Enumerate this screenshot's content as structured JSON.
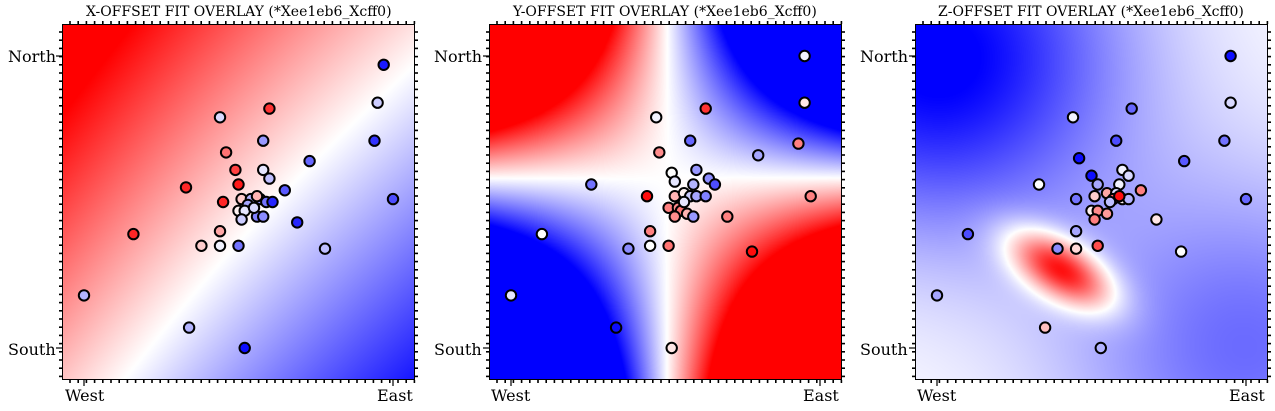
{
  "chart_data": [
    {
      "type": "scatter",
      "title": "X-OFFSET FIT OVERLAY (*Xee1eb6_Xcff0)",
      "xtick_labels": [
        "West",
        "East"
      ],
      "ytick_labels": [
        "North",
        "South"
      ],
      "xlim": [
        0,
        100
      ],
      "ylim": [
        0,
        100
      ],
      "x_ticks": [
        0,
        100
      ],
      "y_ticks": [
        0,
        100
      ],
      "background": "x-offset gradient (red north-west to blue south-east)",
      "points": [
        {
          "x": 97,
          "y": 97,
          "v": -0.9
        },
        {
          "x": 95,
          "y": 84,
          "v": -0.2
        },
        {
          "x": 94,
          "y": 71,
          "v": -0.8
        },
        {
          "x": 60,
          "y": 82,
          "v": 0.8
        },
        {
          "x": 44,
          "y": 79,
          "v": -0.15
        },
        {
          "x": 58,
          "y": 71,
          "v": -0.4
        },
        {
          "x": 46,
          "y": 67,
          "v": 0.55
        },
        {
          "x": 49,
          "y": 61,
          "v": 0.75
        },
        {
          "x": 58,
          "y": 61,
          "v": -0.1
        },
        {
          "x": 60,
          "y": 58,
          "v": -0.25
        },
        {
          "x": 33,
          "y": 55,
          "v": 0.85
        },
        {
          "x": 73,
          "y": 64,
          "v": -0.6
        },
        {
          "x": 50,
          "y": 56,
          "v": 0.9
        },
        {
          "x": 65,
          "y": 54,
          "v": -0.65
        },
        {
          "x": 100,
          "y": 51,
          "v": -0.7
        },
        {
          "x": 45,
          "y": 50,
          "v": 0.85
        },
        {
          "x": 51,
          "y": 51,
          "v": 0.2
        },
        {
          "x": 54,
          "y": 51,
          "v": -0.3
        },
        {
          "x": 57,
          "y": 51,
          "v": -0.4
        },
        {
          "x": 59,
          "y": 50,
          "v": -0.55
        },
        {
          "x": 61,
          "y": 50,
          "v": -0.85
        },
        {
          "x": 53,
          "y": 49,
          "v": -0.35
        },
        {
          "x": 50,
          "y": 47,
          "v": 0.05
        },
        {
          "x": 52,
          "y": 47,
          "v": -0.1
        },
        {
          "x": 56,
          "y": 45,
          "v": -0.5
        },
        {
          "x": 58,
          "y": 45,
          "v": -0.45
        },
        {
          "x": 51,
          "y": 44,
          "v": -0.2
        },
        {
          "x": 69,
          "y": 43,
          "v": -0.85
        },
        {
          "x": 55,
          "y": 48,
          "v": -0.15
        },
        {
          "x": 16,
          "y": 39,
          "v": 0.85
        },
        {
          "x": 44,
          "y": 40,
          "v": 0.35
        },
        {
          "x": 38,
          "y": 35,
          "v": 0.2
        },
        {
          "x": 44,
          "y": 35,
          "v": -0.05
        },
        {
          "x": 50,
          "y": 35,
          "v": -0.55
        },
        {
          "x": 78,
          "y": 34,
          "v": -0.25
        },
        {
          "x": 0,
          "y": 18,
          "v": -0.3
        },
        {
          "x": 34,
          "y": 7,
          "v": -0.3
        },
        {
          "x": 52,
          "y": 0,
          "v": -0.95
        },
        {
          "x": 56,
          "y": 52,
          "v": 0.3
        }
      ]
    },
    {
      "type": "scatter",
      "title": "Y-OFFSET FIT OVERLAY (*Xee1eb6_Xcff0)",
      "xtick_labels": [
        "West",
        "East"
      ],
      "ytick_labels": [
        "North",
        "South"
      ],
      "xlim": [
        0,
        100
      ],
      "ylim": [
        0,
        100
      ],
      "x_ticks": [
        0,
        100
      ],
      "y_ticks": [
        0,
        100
      ],
      "background": "y-offset gradient (red north-west and south-east, blue north-east and south-west)",
      "points": [
        {
          "x": 95,
          "y": 100,
          "v": -0.05
        },
        {
          "x": 95,
          "y": 84,
          "v": 0.1
        },
        {
          "x": 47,
          "y": 79,
          "v": -0.05
        },
        {
          "x": 63,
          "y": 82,
          "v": 0.8
        },
        {
          "x": 58,
          "y": 71,
          "v": -0.6
        },
        {
          "x": 48,
          "y": 67,
          "v": 0.45
        },
        {
          "x": 80,
          "y": 66,
          "v": -0.35
        },
        {
          "x": 93,
          "y": 70,
          "v": 0.5
        },
        {
          "x": 52,
          "y": 60,
          "v": 0.0
        },
        {
          "x": 60,
          "y": 61,
          "v": -0.4
        },
        {
          "x": 64,
          "y": 58,
          "v": -0.45
        },
        {
          "x": 53,
          "y": 57,
          "v": -0.1
        },
        {
          "x": 59,
          "y": 56,
          "v": -0.3
        },
        {
          "x": 66,
          "y": 56,
          "v": -0.7
        },
        {
          "x": 26,
          "y": 56,
          "v": -0.55
        },
        {
          "x": 97,
          "y": 52,
          "v": 0.5
        },
        {
          "x": 44,
          "y": 52,
          "v": 0.95
        },
        {
          "x": 53,
          "y": 52,
          "v": 0.3
        },
        {
          "x": 56,
          "y": 53,
          "v": 0.05
        },
        {
          "x": 58,
          "y": 52,
          "v": -0.2
        },
        {
          "x": 60,
          "y": 52,
          "v": -0.35
        },
        {
          "x": 63,
          "y": 52,
          "v": -0.5
        },
        {
          "x": 51,
          "y": 48,
          "v": 0.5
        },
        {
          "x": 54,
          "y": 48,
          "v": 0.45
        },
        {
          "x": 55,
          "y": 47,
          "v": 0.55
        },
        {
          "x": 57,
          "y": 46,
          "v": 0.3
        },
        {
          "x": 59,
          "y": 45,
          "v": -0.4
        },
        {
          "x": 53,
          "y": 45,
          "v": 0.45
        },
        {
          "x": 70,
          "y": 45,
          "v": 0.5
        },
        {
          "x": 10,
          "y": 39,
          "v": 0.0
        },
        {
          "x": 45,
          "y": 40,
          "v": 0.5
        },
        {
          "x": 38,
          "y": 34,
          "v": -0.45
        },
        {
          "x": 45,
          "y": 35,
          "v": 0.0
        },
        {
          "x": 51,
          "y": 35,
          "v": 0.55
        },
        {
          "x": 78,
          "y": 33,
          "v": 0.95
        },
        {
          "x": 0,
          "y": 18,
          "v": -0.1
        },
        {
          "x": 34,
          "y": 7,
          "v": -0.95
        },
        {
          "x": 52,
          "y": 0,
          "v": 0.1
        },
        {
          "x": 56,
          "y": 50,
          "v": -0.1
        }
      ]
    },
    {
      "type": "scatter",
      "title": "Z-OFFSET FIT OVERLAY (*Xee1eb6_Xcff0)",
      "xtick_labels": [
        "West",
        "East"
      ],
      "ytick_labels": [
        "North",
        "South"
      ],
      "xlim": [
        0,
        100
      ],
      "ylim": [
        0,
        100
      ],
      "x_ticks": [
        0,
        100
      ],
      "y_ticks": [
        0,
        100
      ],
      "background": "z-offset gradient (blue north-west and south-east corners, red elliptical peak south-centre)",
      "points": [
        {
          "x": 95,
          "y": 100,
          "v": -0.95
        },
        {
          "x": 95,
          "y": 84,
          "v": -0.15
        },
        {
          "x": 93,
          "y": 71,
          "v": -0.55
        },
        {
          "x": 63,
          "y": 82,
          "v": -0.6
        },
        {
          "x": 44,
          "y": 79,
          "v": -0.05
        },
        {
          "x": 58,
          "y": 71,
          "v": -0.7
        },
        {
          "x": 46,
          "y": 65,
          "v": -0.95
        },
        {
          "x": 80,
          "y": 64,
          "v": -0.65
        },
        {
          "x": 60,
          "y": 61,
          "v": -0.05
        },
        {
          "x": 62,
          "y": 59,
          "v": -0.15
        },
        {
          "x": 50,
          "y": 59,
          "v": -0.95
        },
        {
          "x": 33,
          "y": 56,
          "v": 0.0
        },
        {
          "x": 52,
          "y": 56,
          "v": -0.35
        },
        {
          "x": 59,
          "y": 56,
          "v": -0.05
        },
        {
          "x": 66,
          "y": 54,
          "v": 0.5
        },
        {
          "x": 100,
          "y": 51,
          "v": -0.6
        },
        {
          "x": 45,
          "y": 51,
          "v": -0.55
        },
        {
          "x": 51,
          "y": 52,
          "v": 0.2
        },
        {
          "x": 55,
          "y": 53,
          "v": 0.35
        },
        {
          "x": 58,
          "y": 53,
          "v": -0.15
        },
        {
          "x": 60,
          "y": 51,
          "v": 0.05
        },
        {
          "x": 62,
          "y": 51,
          "v": -0.3
        },
        {
          "x": 50,
          "y": 47,
          "v": 0.05
        },
        {
          "x": 52,
          "y": 47,
          "v": 0.45
        },
        {
          "x": 55,
          "y": 46,
          "v": 0.4
        },
        {
          "x": 57,
          "y": 51,
          "v": 0.6
        },
        {
          "x": 51,
          "y": 44,
          "v": 0.5
        },
        {
          "x": 71,
          "y": 44,
          "v": 0.1
        },
        {
          "x": 45,
          "y": 40,
          "v": -0.35
        },
        {
          "x": 10,
          "y": 39,
          "v": -0.7
        },
        {
          "x": 39,
          "y": 34,
          "v": -0.45
        },
        {
          "x": 45,
          "y": 34,
          "v": 0.15
        },
        {
          "x": 52,
          "y": 35,
          "v": 0.7
        },
        {
          "x": 79,
          "y": 33,
          "v": 0.0
        },
        {
          "x": 0,
          "y": 18,
          "v": -0.35
        },
        {
          "x": 35,
          "y": 7,
          "v": 0.25
        },
        {
          "x": 53,
          "y": 0,
          "v": -0.3
        },
        {
          "x": 59,
          "y": 52,
          "v": 0.95
        },
        {
          "x": 56,
          "y": 50,
          "v": -0.25
        }
      ]
    }
  ]
}
